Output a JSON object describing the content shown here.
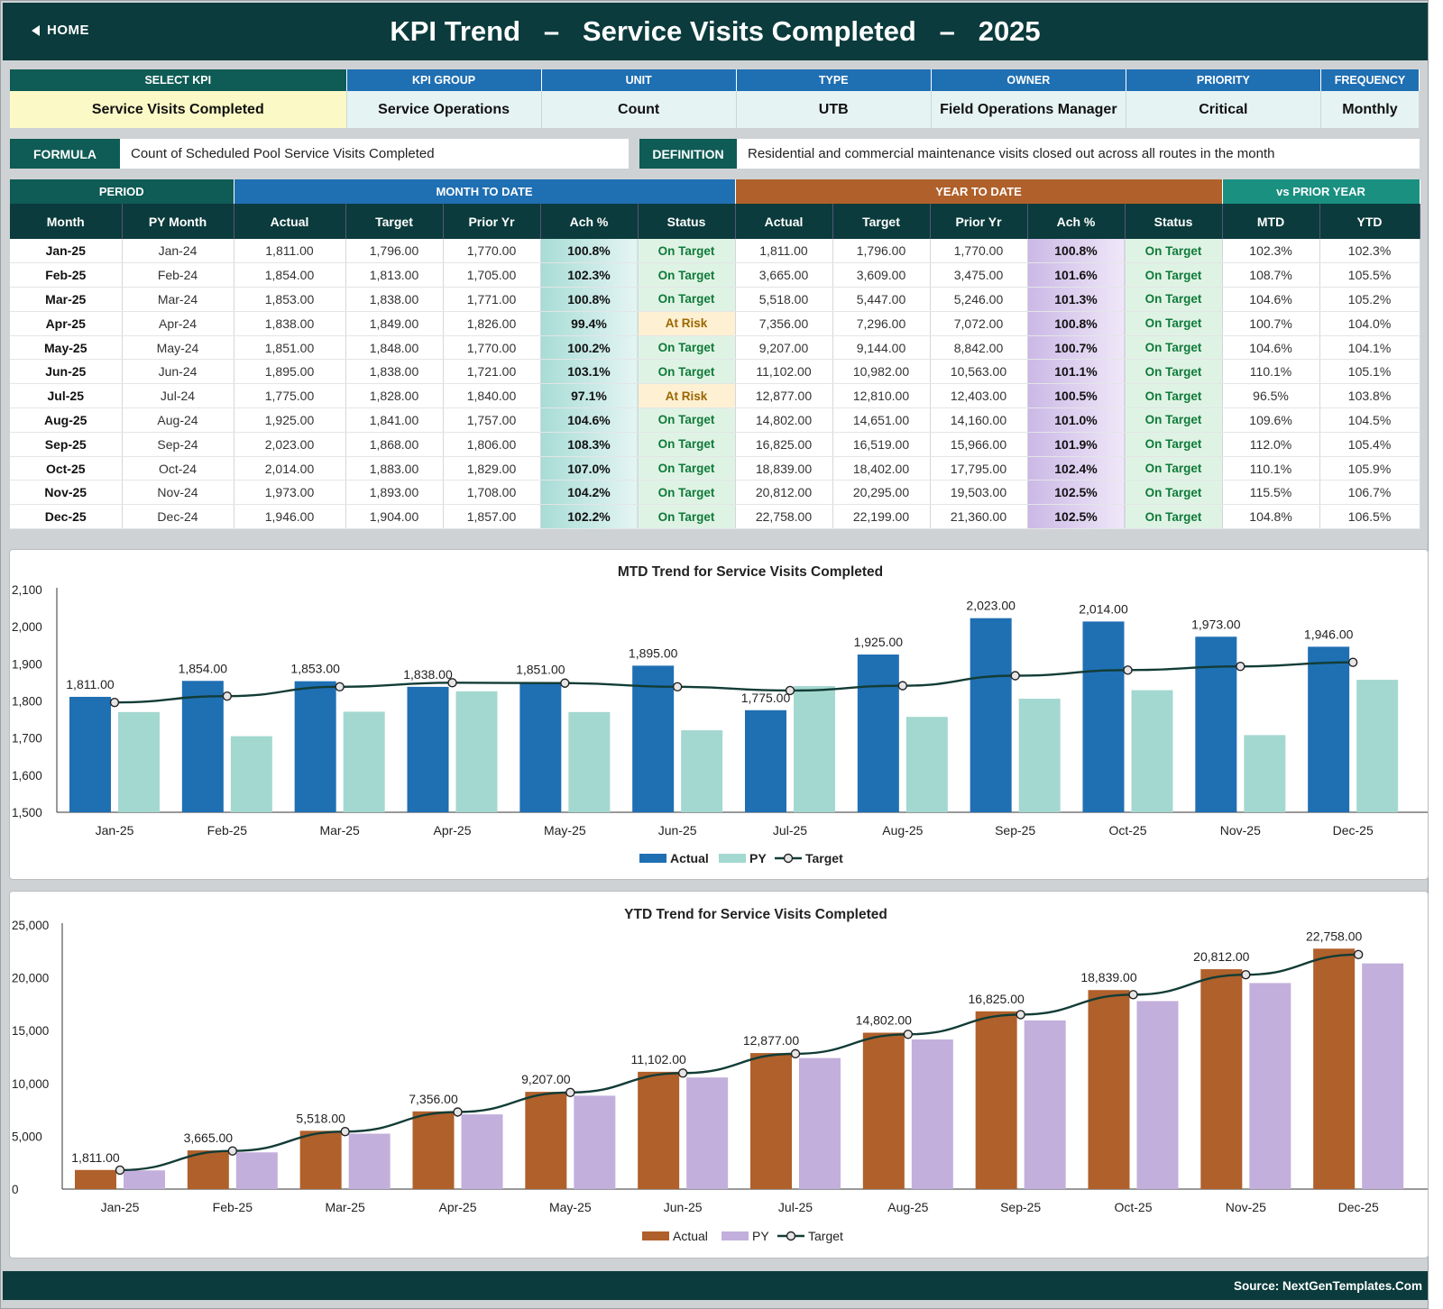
{
  "header": {
    "home_label": "HOME",
    "title": "KPI Trend   –   Service Visits Completed   –   2025"
  },
  "kpi_info": {
    "headers": [
      "SELECT KPI",
      "KPI GROUP",
      "UNIT",
      "TYPE",
      "OWNER",
      "PRIORITY",
      "FREQUENCY"
    ],
    "values": [
      "Service Visits Completed",
      "Service Operations",
      "Count",
      "UTB",
      "Field Operations Manager",
      "Critical",
      "Monthly"
    ]
  },
  "formula": {
    "label": "FORMULA",
    "text": "Count of Scheduled Pool Service Visits Completed",
    "definition_label": "DEFINITION",
    "definition_text": "Residential and commercial maintenance visits closed out across all routes in the month"
  },
  "table": {
    "groups": [
      "PERIOD",
      "MONTH TO DATE",
      "YEAR TO DATE",
      "vs PRIOR YEAR"
    ],
    "columns": [
      "Month",
      "PY Month",
      "Actual",
      "Target",
      "Prior Yr",
      "Ach %",
      "Status",
      "Actual",
      "Target",
      "Prior Yr",
      "Ach %",
      "Status",
      "MTD",
      "YTD"
    ],
    "rows": [
      [
        "Jan-25",
        "Jan-24",
        "1,811.00",
        "1,796.00",
        "1,770.00",
        "100.8%",
        "On Target",
        "1,811.00",
        "1,796.00",
        "1,770.00",
        "100.8%",
        "On Target",
        "102.3%",
        "102.3%"
      ],
      [
        "Feb-25",
        "Feb-24",
        "1,854.00",
        "1,813.00",
        "1,705.00",
        "102.3%",
        "On Target",
        "3,665.00",
        "3,609.00",
        "3,475.00",
        "101.6%",
        "On Target",
        "108.7%",
        "105.5%"
      ],
      [
        "Mar-25",
        "Mar-24",
        "1,853.00",
        "1,838.00",
        "1,771.00",
        "100.8%",
        "On Target",
        "5,518.00",
        "5,447.00",
        "5,246.00",
        "101.3%",
        "On Target",
        "104.6%",
        "105.2%"
      ],
      [
        "Apr-25",
        "Apr-24",
        "1,838.00",
        "1,849.00",
        "1,826.00",
        "99.4%",
        "At Risk",
        "7,356.00",
        "7,296.00",
        "7,072.00",
        "100.8%",
        "On Target",
        "100.7%",
        "104.0%"
      ],
      [
        "May-25",
        "May-24",
        "1,851.00",
        "1,848.00",
        "1,770.00",
        "100.2%",
        "On Target",
        "9,207.00",
        "9,144.00",
        "8,842.00",
        "100.7%",
        "On Target",
        "104.6%",
        "104.1%"
      ],
      [
        "Jun-25",
        "Jun-24",
        "1,895.00",
        "1,838.00",
        "1,721.00",
        "103.1%",
        "On Target",
        "11,102.00",
        "10,982.00",
        "10,563.00",
        "101.1%",
        "On Target",
        "110.1%",
        "105.1%"
      ],
      [
        "Jul-25",
        "Jul-24",
        "1,775.00",
        "1,828.00",
        "1,840.00",
        "97.1%",
        "At Risk",
        "12,877.00",
        "12,810.00",
        "12,403.00",
        "100.5%",
        "On Target",
        "96.5%",
        "103.8%"
      ],
      [
        "Aug-25",
        "Aug-24",
        "1,925.00",
        "1,841.00",
        "1,757.00",
        "104.6%",
        "On Target",
        "14,802.00",
        "14,651.00",
        "14,160.00",
        "101.0%",
        "On Target",
        "109.6%",
        "104.5%"
      ],
      [
        "Sep-25",
        "Sep-24",
        "2,023.00",
        "1,868.00",
        "1,806.00",
        "108.3%",
        "On Target",
        "16,825.00",
        "16,519.00",
        "15,966.00",
        "101.9%",
        "On Target",
        "112.0%",
        "105.4%"
      ],
      [
        "Oct-25",
        "Oct-24",
        "2,014.00",
        "1,883.00",
        "1,829.00",
        "107.0%",
        "On Target",
        "18,839.00",
        "18,402.00",
        "17,795.00",
        "102.4%",
        "On Target",
        "110.1%",
        "105.9%"
      ],
      [
        "Nov-25",
        "Nov-24",
        "1,973.00",
        "1,893.00",
        "1,708.00",
        "104.2%",
        "On Target",
        "20,812.00",
        "20,295.00",
        "19,503.00",
        "102.5%",
        "On Target",
        "115.5%",
        "106.7%"
      ],
      [
        "Dec-25",
        "Dec-24",
        "1,946.00",
        "1,904.00",
        "1,857.00",
        "102.2%",
        "On Target",
        "22,758.00",
        "22,199.00",
        "21,360.00",
        "102.5%",
        "On Target",
        "104.8%",
        "106.5%"
      ]
    ]
  },
  "colors": {
    "mtd_actual": "#1f6fb3",
    "mtd_py": "#a3d8d0",
    "ytd_actual": "#b0602a",
    "ytd_py": "#c2afdc",
    "target_line": "#123c36"
  },
  "chart_data": [
    {
      "type": "bar",
      "title": "MTD Trend for Service Visits Completed",
      "categories": [
        "Jan-25",
        "Feb-25",
        "Mar-25",
        "Apr-25",
        "May-25",
        "Jun-25",
        "Jul-25",
        "Aug-25",
        "Sep-25",
        "Oct-25",
        "Nov-25",
        "Dec-25"
      ],
      "series": [
        {
          "name": "Actual",
          "kind": "bar",
          "values": [
            1811,
            1854,
            1853,
            1838,
            1851,
            1895,
            1775,
            1925,
            2023,
            2014,
            1973,
            1946
          ],
          "labels": [
            "1,811.00",
            "1,854.00",
            "1,853.00",
            "1,838.00",
            "1,851.00",
            "1,895.00",
            "1,775.00",
            "1,925.00",
            "2,023.00",
            "2,014.00",
            "1,973.00",
            "1,946.00"
          ]
        },
        {
          "name": "PY",
          "kind": "bar",
          "values": [
            1770,
            1705,
            1771,
            1826,
            1770,
            1721,
            1840,
            1757,
            1806,
            1829,
            1708,
            1857
          ]
        },
        {
          "name": "Target",
          "kind": "line",
          "values": [
            1796,
            1813,
            1838,
            1849,
            1848,
            1838,
            1828,
            1841,
            1868,
            1883,
            1893,
            1904
          ]
        }
      ],
      "ylim": [
        1500,
        2100
      ],
      "yticks": [
        "1,500",
        "1,600",
        "1,700",
        "1,800",
        "1,900",
        "2,000",
        "2,100"
      ],
      "legend": "bottom"
    },
    {
      "type": "bar",
      "title": "YTD Trend for Service Visits Completed",
      "categories": [
        "Jan-25",
        "Feb-25",
        "Mar-25",
        "Apr-25",
        "May-25",
        "Jun-25",
        "Jul-25",
        "Aug-25",
        "Sep-25",
        "Oct-25",
        "Nov-25",
        "Dec-25"
      ],
      "series": [
        {
          "name": "Actual",
          "kind": "bar",
          "values": [
            1811,
            3665,
            5518,
            7356,
            9207,
            11102,
            12877,
            14802,
            16825,
            18839,
            20812,
            22758
          ],
          "labels": [
            "1,811.00",
            "3,665.00",
            "5,518.00",
            "7,356.00",
            "9,207.00",
            "11,102.00",
            "12,877.00",
            "14,802.00",
            "16,825.00",
            "18,839.00",
            "20,812.00",
            "22,758.00"
          ]
        },
        {
          "name": "PY",
          "kind": "bar",
          "values": [
            1770,
            3475,
            5246,
            7072,
            8842,
            10563,
            12403,
            14160,
            15966,
            17795,
            19503,
            21360
          ]
        },
        {
          "name": "Target",
          "kind": "line",
          "values": [
            1796,
            3609,
            5447,
            7296,
            9144,
            10982,
            12810,
            14651,
            16519,
            18402,
            20295,
            22199
          ]
        }
      ],
      "ylim": [
        0,
        25000
      ],
      "yticks": [
        "0",
        "5,000",
        "10,000",
        "15,000",
        "20,000",
        "25,000"
      ],
      "legend": "bottom"
    }
  ],
  "footer": {
    "source": "Source: NextGenTemplates.Com"
  }
}
